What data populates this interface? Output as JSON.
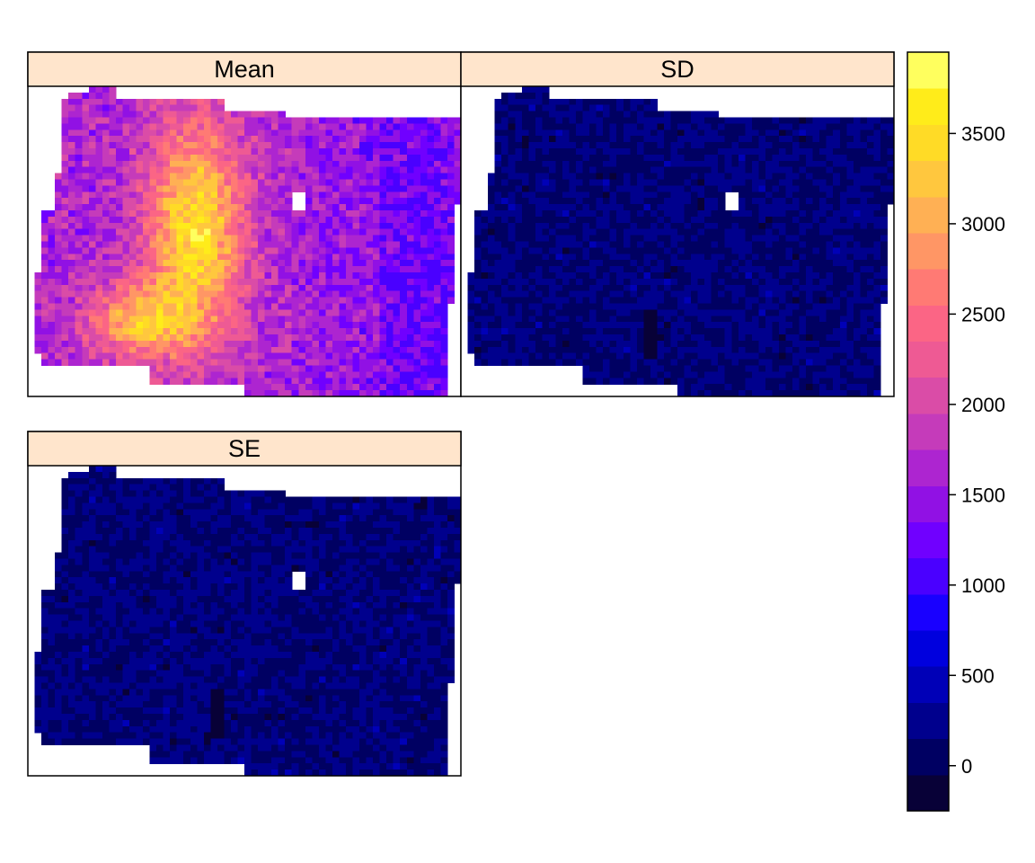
{
  "chart_data": {
    "type": "heatmap",
    "layout": "lattice levelplot, 2x2 panel grid, shared color key on the right",
    "panels": [
      {
        "name": "Mean",
        "strip_label": "Mean",
        "value_range": [
          1000,
          3700
        ],
        "description_hint": "high values west-centre, lower values east"
      },
      {
        "name": "SD",
        "strip_label": "SD",
        "value_range": [
          -100,
          500
        ],
        "typical_value": 150
      },
      {
        "name": "SE",
        "strip_label": "SE",
        "value_range": [
          -100,
          400
        ],
        "typical_value": 120
      }
    ],
    "colorkey": {
      "position": "right",
      "breaks": [
        -250,
        -50,
        150,
        350,
        550,
        750,
        950,
        1150,
        1350,
        1550,
        1750,
        1950,
        2150,
        2350,
        2550,
        2750,
        2950,
        3150,
        3350,
        3550,
        3750,
        3950
      ],
      "colors": [
        "#080137",
        "#000062",
        "#00008D",
        "#0000B7",
        "#0000DE",
        "#1900FF",
        "#4A00FF",
        "#7000FF",
        "#9111E4",
        "#AD25D0",
        "#C53BBA",
        "#DA4CA7",
        "#EE5A94",
        "#FB6585",
        "#FF7A74",
        "#FF9665",
        "#FFB054",
        "#FFC73E",
        "#FFDB26",
        "#FFEC1A",
        "#FFFF5E"
      ],
      "tick_values": [
        0,
        500,
        1000,
        1500,
        2000,
        2500,
        3000,
        3500
      ],
      "tick_labels": [
        "0",
        "500",
        "1000",
        "1500",
        "2000",
        "2500",
        "3000",
        "3500"
      ]
    },
    "strip_color": "#FFE5CC",
    "background": "#FFFFFF"
  }
}
